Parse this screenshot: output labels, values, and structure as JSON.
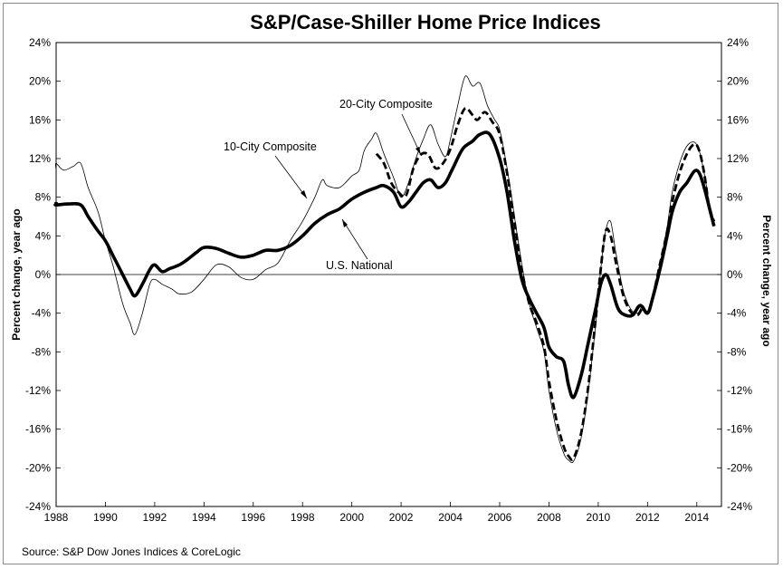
{
  "chart_data": {
    "type": "line",
    "title": "S&P/Case-Shiller Home Price Indices",
    "ylabel_left": "Percent change, year ago",
    "ylabel_right": "Percent change, year ago",
    "xlabel": "",
    "source": "Source: S&P Dow Jones Indices & CoreLogic",
    "xlim": [
      1988,
      2015
    ],
    "ylim": [
      -24,
      24
    ],
    "x_ticks": [
      "1988",
      "1990",
      "1992",
      "1994",
      "1996",
      "1998",
      "2000",
      "2002",
      "2004",
      "2006",
      "2008",
      "2010",
      "2012",
      "2014"
    ],
    "y_ticks": [
      "24%",
      "20%",
      "16%",
      "12%",
      "8%",
      "4%",
      "0%",
      "-4%",
      "-8%",
      "-12%",
      "-16%",
      "-20%",
      "-24%"
    ],
    "grid": false,
    "legend": "annotations",
    "annotations": [
      {
        "text": "10-City Composite",
        "series": "10-City Composite"
      },
      {
        "text": "20-City Composite",
        "series": "20-City Composite"
      },
      {
        "text": "U.S. National",
        "series": "U.S. National"
      }
    ],
    "series": [
      {
        "name": "10-City Composite",
        "style": "thin",
        "color": "#000000",
        "points": [
          [
            1987.0,
            12.3
          ],
          [
            1987.5,
            11.0
          ],
          [
            1988.0,
            11.5
          ],
          [
            1988.3,
            10.8
          ],
          [
            1988.7,
            11.2
          ],
          [
            1989.0,
            11.5
          ],
          [
            1989.3,
            9.0
          ],
          [
            1989.7,
            6.5
          ],
          [
            1990.0,
            3.5
          ],
          [
            1990.3,
            1.0
          ],
          [
            1990.7,
            -3.0
          ],
          [
            1991.0,
            -5.0
          ],
          [
            1991.2,
            -6.2
          ],
          [
            1991.5,
            -4.0
          ],
          [
            1991.8,
            -1.0
          ],
          [
            1992.0,
            -0.5
          ],
          [
            1992.3,
            -1.0
          ],
          [
            1992.7,
            -1.5
          ],
          [
            1993.0,
            -2.0
          ],
          [
            1993.5,
            -1.8
          ],
          [
            1994.0,
            -0.5
          ],
          [
            1994.5,
            1.0
          ],
          [
            1995.0,
            0.8
          ],
          [
            1995.5,
            -0.3
          ],
          [
            1996.0,
            -0.5
          ],
          [
            1996.5,
            0.5
          ],
          [
            1997.0,
            1.2
          ],
          [
            1997.5,
            3.5
          ],
          [
            1998.0,
            5.5
          ],
          [
            1998.5,
            8.0
          ],
          [
            1998.8,
            9.8
          ],
          [
            1999.0,
            9.2
          ],
          [
            1999.5,
            9.0
          ],
          [
            2000.0,
            10.2
          ],
          [
            2000.3,
            10.8
          ],
          [
            2000.5,
            12.8
          ],
          [
            2000.8,
            14.0
          ],
          [
            2001.0,
            14.6
          ],
          [
            2001.3,
            12.5
          ],
          [
            2001.7,
            10.0
          ],
          [
            2002.0,
            8.0
          ],
          [
            2002.3,
            9.5
          ],
          [
            2002.6,
            12.0
          ],
          [
            2002.9,
            14.0
          ],
          [
            2003.2,
            15.5
          ],
          [
            2003.5,
            13.5
          ],
          [
            2003.8,
            12.2
          ],
          [
            2004.0,
            14.0
          ],
          [
            2004.3,
            17.5
          ],
          [
            2004.6,
            20.5
          ],
          [
            2004.9,
            19.5
          ],
          [
            2005.2,
            19.8
          ],
          [
            2005.5,
            17.5
          ],
          [
            2005.8,
            16.0
          ],
          [
            2006.0,
            15.0
          ],
          [
            2006.3,
            11.0
          ],
          [
            2006.6,
            6.0
          ],
          [
            2006.9,
            1.0
          ],
          [
            2007.2,
            -3.0
          ],
          [
            2007.5,
            -5.5
          ],
          [
            2007.8,
            -8.0
          ],
          [
            2008.0,
            -12.0
          ],
          [
            2008.3,
            -16.0
          ],
          [
            2008.6,
            -18.5
          ],
          [
            2008.8,
            -19.2
          ],
          [
            2009.0,
            -19.3
          ],
          [
            2009.3,
            -17.0
          ],
          [
            2009.6,
            -12.0
          ],
          [
            2009.9,
            -5.0
          ],
          [
            2010.1,
            0.5
          ],
          [
            2010.3,
            4.5
          ],
          [
            2010.5,
            5.5
          ],
          [
            2010.7,
            2.5
          ],
          [
            2011.0,
            -1.5
          ],
          [
            2011.3,
            -3.5
          ],
          [
            2011.6,
            -4.0
          ],
          [
            2011.8,
            -3.2
          ],
          [
            2012.0,
            -3.8
          ],
          [
            2012.2,
            -2.5
          ],
          [
            2012.5,
            1.0
          ],
          [
            2012.8,
            5.0
          ],
          [
            2013.0,
            8.5
          ],
          [
            2013.3,
            11.5
          ],
          [
            2013.6,
            13.3
          ],
          [
            2013.9,
            13.7
          ],
          [
            2014.1,
            12.8
          ],
          [
            2014.3,
            10.5
          ],
          [
            2014.5,
            7.5
          ],
          [
            2014.7,
            5.5
          ]
        ]
      },
      {
        "name": "20-City Composite",
        "style": "dashed",
        "color": "#000000",
        "points": [
          [
            2001.0,
            12.5
          ],
          [
            2001.3,
            11.5
          ],
          [
            2001.6,
            9.5
          ],
          [
            2001.9,
            8.5
          ],
          [
            2002.2,
            8.2
          ],
          [
            2002.5,
            11.0
          ],
          [
            2002.8,
            12.4
          ],
          [
            2003.1,
            12.4
          ],
          [
            2003.4,
            11.0
          ],
          [
            2003.7,
            11.5
          ],
          [
            2004.0,
            13.0
          ],
          [
            2004.3,
            15.5
          ],
          [
            2004.6,
            17.2
          ],
          [
            2004.9,
            16.5
          ],
          [
            2005.1,
            16.0
          ],
          [
            2005.4,
            16.8
          ],
          [
            2005.7,
            15.8
          ],
          [
            2006.0,
            14.5
          ],
          [
            2006.3,
            10.5
          ],
          [
            2006.6,
            5.5
          ],
          [
            2006.9,
            0.5
          ],
          [
            2007.2,
            -3.0
          ],
          [
            2007.5,
            -5.0
          ],
          [
            2007.8,
            -7.5
          ],
          [
            2008.0,
            -11.0
          ],
          [
            2008.3,
            -15.0
          ],
          [
            2008.6,
            -17.8
          ],
          [
            2008.8,
            -18.8
          ],
          [
            2009.0,
            -19.0
          ],
          [
            2009.3,
            -16.5
          ],
          [
            2009.6,
            -11.5
          ],
          [
            2009.9,
            -4.5
          ],
          [
            2010.1,
            0.5
          ],
          [
            2010.3,
            4.5
          ],
          [
            2010.5,
            4.0
          ],
          [
            2010.7,
            1.5
          ],
          [
            2011.0,
            -2.0
          ],
          [
            2011.3,
            -3.8
          ],
          [
            2011.6,
            -4.2
          ],
          [
            2011.8,
            -3.5
          ],
          [
            2012.0,
            -4.0
          ],
          [
            2012.2,
            -2.5
          ],
          [
            2012.5,
            1.0
          ],
          [
            2012.8,
            4.5
          ],
          [
            2013.0,
            7.5
          ],
          [
            2013.3,
            10.5
          ],
          [
            2013.6,
            12.5
          ],
          [
            2013.9,
            13.5
          ],
          [
            2014.1,
            12.8
          ],
          [
            2014.3,
            10.5
          ],
          [
            2014.5,
            7.0
          ],
          [
            2014.7,
            5.5
          ]
        ]
      },
      {
        "name": "U.S. National",
        "style": "thick",
        "color": "#000000",
        "points": [
          [
            1987.0,
            7.5
          ],
          [
            1987.5,
            7.3
          ],
          [
            1988.0,
            7.2
          ],
          [
            1988.5,
            7.3
          ],
          [
            1989.0,
            7.2
          ],
          [
            1989.3,
            6.0
          ],
          [
            1989.7,
            4.5
          ],
          [
            1990.0,
            3.5
          ],
          [
            1990.3,
            2.0
          ],
          [
            1990.7,
            0.0
          ],
          [
            1991.0,
            -1.5
          ],
          [
            1991.2,
            -2.2
          ],
          [
            1991.5,
            -1.0
          ],
          [
            1991.8,
            0.5
          ],
          [
            1992.0,
            1.0
          ],
          [
            1992.3,
            0.3
          ],
          [
            1992.6,
            0.6
          ],
          [
            1993.0,
            1.0
          ],
          [
            1993.3,
            1.5
          ],
          [
            1993.7,
            2.3
          ],
          [
            1994.0,
            2.8
          ],
          [
            1994.5,
            2.7
          ],
          [
            1995.0,
            2.2
          ],
          [
            1995.5,
            1.8
          ],
          [
            1996.0,
            2.0
          ],
          [
            1996.5,
            2.5
          ],
          [
            1997.0,
            2.5
          ],
          [
            1997.5,
            3.0
          ],
          [
            1998.0,
            4.0
          ],
          [
            1998.5,
            5.3
          ],
          [
            1999.0,
            6.2
          ],
          [
            1999.5,
            6.8
          ],
          [
            2000.0,
            7.8
          ],
          [
            2000.5,
            8.5
          ],
          [
            2001.0,
            9.0
          ],
          [
            2001.3,
            9.2
          ],
          [
            2001.7,
            8.5
          ],
          [
            2002.0,
            7.0
          ],
          [
            2002.3,
            7.5
          ],
          [
            2002.6,
            8.5
          ],
          [
            2002.9,
            9.5
          ],
          [
            2003.2,
            9.8
          ],
          [
            2003.5,
            9.0
          ],
          [
            2003.8,
            9.5
          ],
          [
            2004.1,
            11.0
          ],
          [
            2004.5,
            13.0
          ],
          [
            2004.9,
            13.8
          ],
          [
            2005.2,
            14.5
          ],
          [
            2005.6,
            14.5
          ],
          [
            2006.0,
            12.0
          ],
          [
            2006.3,
            8.5
          ],
          [
            2006.6,
            3.5
          ],
          [
            2006.9,
            -0.5
          ],
          [
            2007.2,
            -2.5
          ],
          [
            2007.5,
            -4.0
          ],
          [
            2007.8,
            -5.5
          ],
          [
            2008.0,
            -7.5
          ],
          [
            2008.3,
            -8.5
          ],
          [
            2008.6,
            -9.0
          ],
          [
            2008.8,
            -11.5
          ],
          [
            2009.0,
            -12.7
          ],
          [
            2009.3,
            -10.5
          ],
          [
            2009.6,
            -7.0
          ],
          [
            2009.9,
            -3.5
          ],
          [
            2010.1,
            -1.0
          ],
          [
            2010.3,
            0.0
          ],
          [
            2010.5,
            -1.0
          ],
          [
            2010.8,
            -3.5
          ],
          [
            2011.1,
            -4.2
          ],
          [
            2011.4,
            -4.2
          ],
          [
            2011.7,
            -3.2
          ],
          [
            2012.0,
            -4.0
          ],
          [
            2012.2,
            -2.5
          ],
          [
            2012.5,
            0.5
          ],
          [
            2012.8,
            4.0
          ],
          [
            2013.0,
            6.5
          ],
          [
            2013.3,
            8.5
          ],
          [
            2013.6,
            9.5
          ],
          [
            2013.9,
            10.7
          ],
          [
            2014.1,
            10.5
          ],
          [
            2014.3,
            9.0
          ],
          [
            2014.5,
            7.0
          ],
          [
            2014.7,
            5.0
          ]
        ]
      }
    ]
  }
}
